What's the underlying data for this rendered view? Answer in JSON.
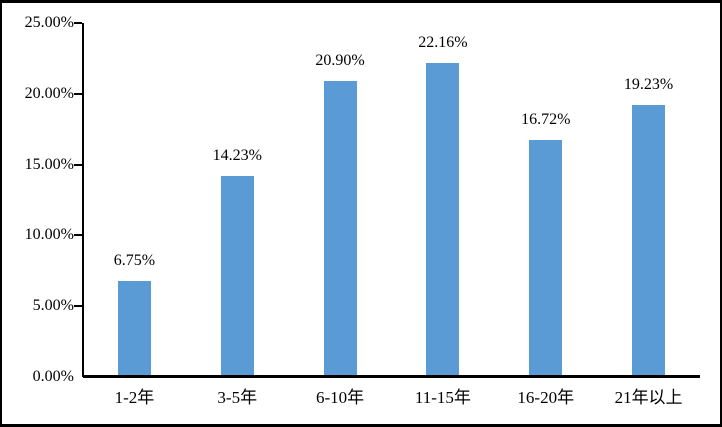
{
  "chart_data": {
    "type": "bar",
    "title": "",
    "categories": [
      "1-2年",
      "3-5年",
      "6-10年",
      "11-15年",
      "16-20年",
      "21年以上"
    ],
    "values": [
      6.75,
      14.23,
      20.9,
      22.16,
      16.72,
      19.23
    ],
    "data_labels": [
      "6.75%",
      "14.23%",
      "20.90%",
      "22.16%",
      "16.72%",
      "19.23%"
    ],
    "xlabel": "",
    "ylabel": "",
    "y_axis": {
      "range": [
        0,
        25
      ],
      "ticks": [
        0,
        5,
        10,
        15,
        20,
        25
      ],
      "tick_labels": [
        "0.00%",
        "5.00%",
        "10.00%",
        "15.00%",
        "20.00%",
        "25.00%"
      ]
    },
    "grid": "off",
    "legend": "none",
    "colors": {
      "bar": "#5b9bd5",
      "axis": "#000000",
      "text": "#000000",
      "background": "#ffffff",
      "frame_border": "#000000"
    }
  }
}
